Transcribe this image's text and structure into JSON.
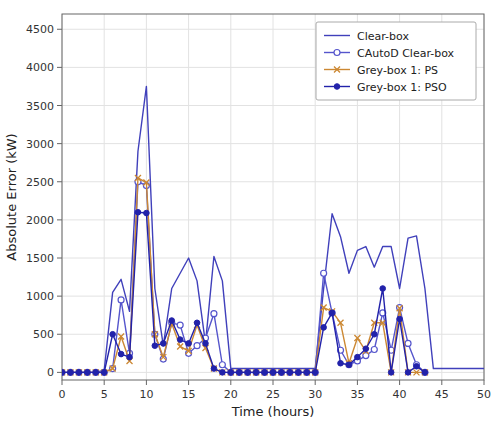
{
  "chart_data": {
    "type": "line",
    "xlabel": "Time (hours)",
    "ylabel": "Absolute Error (kW)",
    "xlim": [
      0,
      50
    ],
    "ylim": [
      -100,
      4700
    ],
    "xticks": [
      0,
      5,
      10,
      15,
      20,
      25,
      30,
      35,
      40,
      45,
      50
    ],
    "yticks": [
      0,
      500,
      1000,
      1500,
      2000,
      2500,
      3000,
      3500,
      4000,
      4500
    ],
    "grid": true,
    "legend": "upper right",
    "series": [
      {
        "name": "Clear-box",
        "color": "#4040bb",
        "marker": "none",
        "line_style": "solid",
        "x": [
          0,
          1,
          2,
          3,
          4,
          5,
          6,
          7,
          8,
          9,
          10,
          11,
          12,
          13,
          14,
          15,
          16,
          17,
          18,
          19,
          20,
          21,
          22,
          23,
          24,
          25,
          26,
          27,
          28,
          29,
          30,
          31,
          32,
          33,
          34,
          35,
          36,
          37,
          38,
          39,
          40,
          41,
          42,
          43,
          44,
          45,
          46,
          47,
          48,
          49,
          50
        ],
        "values": [
          0,
          0,
          0,
          0,
          0,
          30,
          1050,
          1220,
          800,
          2900,
          3750,
          1100,
          350,
          1100,
          1300,
          1500,
          1200,
          380,
          1520,
          1200,
          50,
          50,
          50,
          50,
          50,
          50,
          50,
          50,
          50,
          50,
          50,
          1100,
          2080,
          1780,
          1300,
          1600,
          1650,
          1380,
          1650,
          1650,
          1100,
          1760,
          1790,
          1100,
          50,
          50,
          50,
          50,
          50,
          50,
          50
        ]
      },
      {
        "name": "CAutoD Clear-box",
        "color": "#5555cc",
        "marker": "open-circle",
        "line_style": "solid",
        "x": [
          0,
          1,
          2,
          3,
          4,
          5,
          6,
          7,
          8,
          9,
          10,
          11,
          12,
          13,
          14,
          15,
          16,
          17,
          18,
          19,
          20,
          21,
          22,
          23,
          24,
          25,
          26,
          27,
          28,
          29,
          30,
          31,
          32,
          33,
          34,
          35,
          36,
          37,
          38,
          39,
          40,
          41,
          42,
          43
        ],
        "values": [
          0,
          0,
          0,
          0,
          0,
          0,
          50,
          950,
          250,
          2500,
          2450,
          500,
          175,
          650,
          620,
          250,
          350,
          450,
          770,
          100,
          0,
          0,
          0,
          0,
          0,
          0,
          0,
          0,
          0,
          0,
          0,
          1300,
          780,
          290,
          100,
          150,
          220,
          300,
          780,
          290,
          850,
          380,
          100,
          0
        ]
      },
      {
        "name": "Grey-box 1: PS",
        "color": "#cc8833",
        "marker": "x",
        "line_style": "solid",
        "x": [
          0,
          1,
          2,
          3,
          4,
          5,
          6,
          7,
          8,
          9,
          10,
          11,
          12,
          13,
          14,
          15,
          16,
          17,
          18,
          19,
          20,
          21,
          22,
          23,
          24,
          25,
          26,
          27,
          28,
          29,
          30,
          31,
          32,
          33,
          34,
          35,
          36,
          37,
          38,
          39,
          40,
          41,
          42,
          43
        ],
        "values": [
          0,
          0,
          0,
          0,
          0,
          0,
          50,
          470,
          150,
          2550,
          2490,
          500,
          200,
          640,
          340,
          280,
          620,
          320,
          50,
          0,
          0,
          0,
          0,
          0,
          0,
          0,
          0,
          0,
          0,
          0,
          0,
          850,
          800,
          650,
          120,
          450,
          280,
          650,
          650,
          0,
          840,
          0,
          0,
          0
        ]
      },
      {
        "name": "Grey-box 1: PSO",
        "color": "#2222aa",
        "marker": "circle",
        "line_style": "solid",
        "x": [
          0,
          1,
          2,
          3,
          4,
          5,
          6,
          7,
          8,
          9,
          10,
          11,
          12,
          13,
          14,
          15,
          16,
          17,
          18,
          19,
          20,
          21,
          22,
          23,
          24,
          25,
          26,
          27,
          28,
          29,
          30,
          31,
          32,
          33,
          34,
          35,
          36,
          37,
          38,
          39,
          40,
          41,
          42,
          43
        ],
        "values": [
          0,
          0,
          0,
          0,
          0,
          0,
          500,
          240,
          200,
          2100,
          2090,
          350,
          380,
          680,
          430,
          380,
          650,
          380,
          50,
          0,
          0,
          0,
          0,
          0,
          0,
          0,
          0,
          0,
          0,
          0,
          0,
          590,
          780,
          120,
          100,
          200,
          310,
          500,
          1100,
          0,
          700,
          0,
          80,
          0
        ]
      }
    ]
  }
}
